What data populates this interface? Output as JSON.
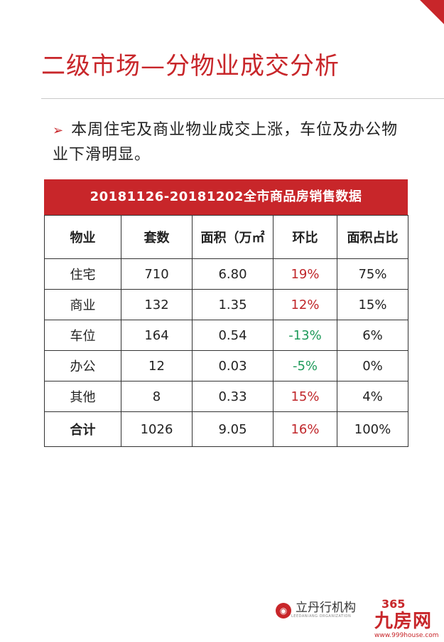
{
  "page_title": "二级市场—分物业成交分析",
  "bullet_text": "本周住宅及商业物业成交上涨，车位及办公物业下滑明显。",
  "table": {
    "title": "20181126-20181202全市商品房销售数据",
    "headers": [
      "物业",
      "套数",
      "面积（万㎡",
      "环比",
      "面积占比"
    ],
    "rows": [
      [
        "住宅",
        "710",
        "6.80",
        "19%",
        "75%"
      ],
      [
        "商业",
        "132",
        "1.35",
        "12%",
        "15%"
      ],
      [
        "车位",
        "164",
        "0.54",
        "-13%",
        "6%"
      ],
      [
        "办公",
        "12",
        "0.03",
        "-5%",
        "0%"
      ],
      [
        "其他",
        "8",
        "0.33",
        "15%",
        "4%"
      ]
    ],
    "total": [
      "合计",
      "1026",
      "9.05",
      "16%",
      "100%"
    ]
  },
  "colors": {
    "accent": "#c8262a",
    "positive": "#c0262a",
    "negative": "#1e9a5a"
  },
  "logo": {
    "name": "立丹行机构",
    "sub": "LEEDANIANG ORGANIZATION",
    "icon": "seal-icon"
  },
  "watermark": {
    "top": "365",
    "main": "九房网",
    "url": "www.999house.com"
  }
}
